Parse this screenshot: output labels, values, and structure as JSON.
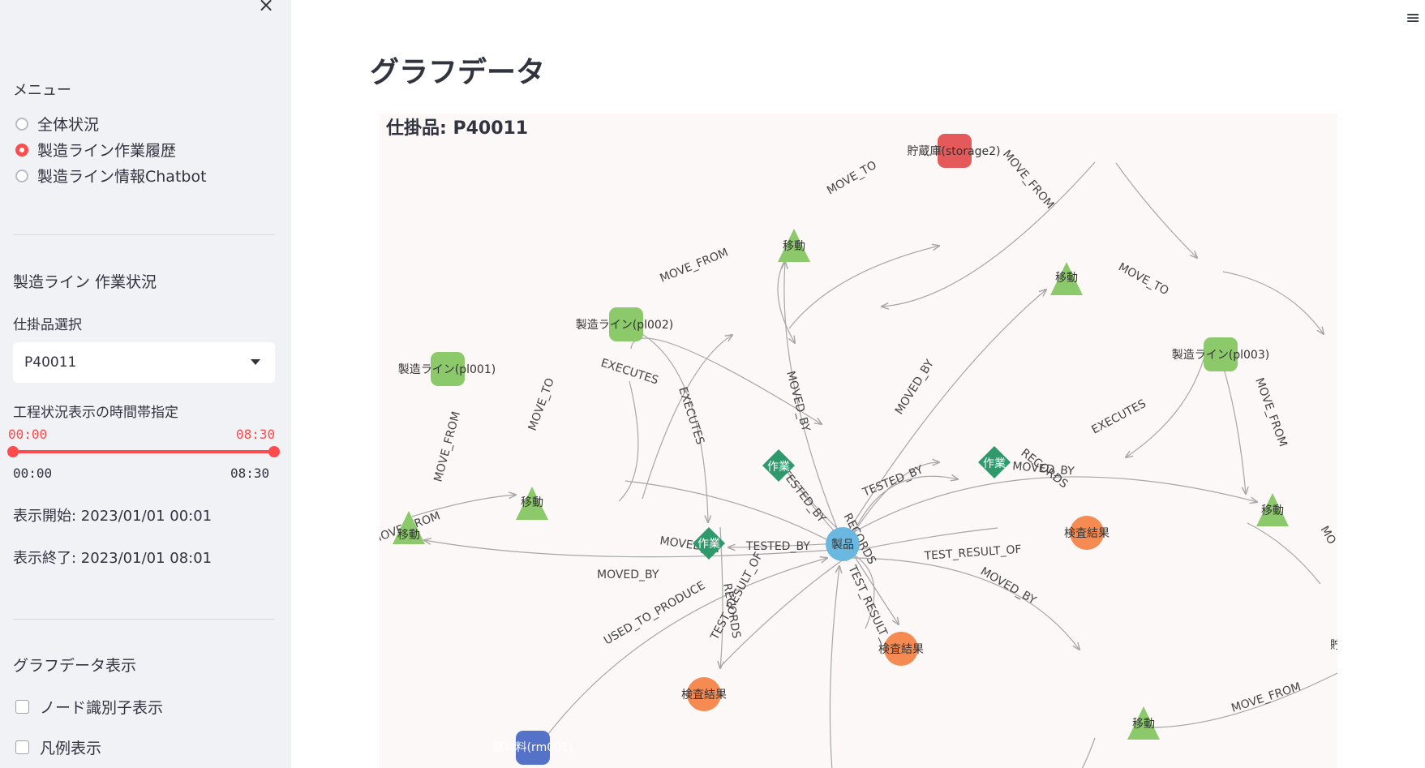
{
  "sidebar": {
    "close_glyph": "×",
    "menu_label": "メニュー",
    "menu_options": [
      "全体状況",
      "製造ライン作業履歴",
      "製造ライン情報Chatbot"
    ],
    "selected_menu": "製造ライン作業履歴",
    "section_title": "製造ライン 作業状況",
    "wip_select_label": "仕掛品選択",
    "wip_select_value": "P40011",
    "time_range_label": "工程状況表示の時間帯指定",
    "slider_value_start": "00:00",
    "slider_value_end": "08:30",
    "slider_min": "00:00",
    "slider_max": "08:30",
    "display_start": "表示開始: 2023/01/01 00:01",
    "display_end": "表示終了: 2023/01/01 08:01",
    "graph_section_title": "グラフデータ表示",
    "checkboxes": [
      "ノード識別子表示",
      "凡例表示"
    ]
  },
  "main": {
    "menu_glyph": "≡",
    "page_title": "グラフデータ",
    "graph_title": "仕掛品: P40011"
  },
  "graph": {
    "colors": {
      "line": "#6cc04a",
      "move": "#8bc96b",
      "work": "#2e9a6c",
      "inspect": "#f58a52",
      "storage": "#e45a5a",
      "product": "#6ab8e0",
      "material": "#5572c9",
      "edge": "#a6a6a6"
    },
    "nodes": {
      "storage2": "貯蔵庫(storage2)",
      "pl001": "製造ライン(pl001)",
      "pl002": "製造ライン(pl002)",
      "pl003": "製造ライン(pl003)",
      "move": "移動",
      "work": "作業",
      "inspect": "検査結果",
      "product": "製品",
      "material": "原材料(rm001)",
      "storage_partial": "貯"
    },
    "edge_labels": {
      "move_to": "MOVE_TO",
      "move_from": "MOVE_FROM",
      "moved_by": "MOVED_BY",
      "executes": "EXECUTES",
      "records": "RECORDS",
      "tested_by": "TESTED_BY",
      "test_result_of": "TEST_RESULT_OF",
      "used_to_produce": "USED_TO_PRODUCE",
      "move_from_partial": "MOVE_FROM",
      "mo_partial": "MO"
    }
  }
}
